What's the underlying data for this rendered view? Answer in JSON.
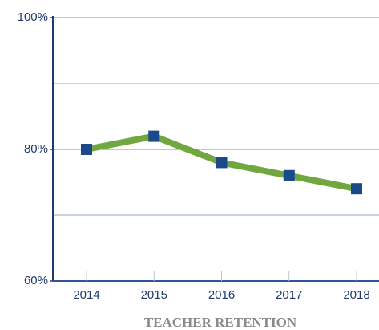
{
  "chart_data": {
    "type": "line",
    "title": "TEACHER RETENTION",
    "categories": [
      "2014",
      "2015",
      "2016",
      "2017",
      "2018"
    ],
    "series": [
      {
        "name": "Teacher retention",
        "color": "#70a83f",
        "marker_color": "#1a4a8a",
        "values": [
          80,
          82,
          78,
          76,
          74
        ]
      }
    ],
    "ylim": [
      60,
      100
    ],
    "yticks": [
      {
        "value": 60,
        "label": "60%"
      },
      {
        "value": 80,
        "label": "80%"
      },
      {
        "value": 100,
        "label": "100%"
      }
    ],
    "minor_yticks": [
      70,
      90
    ],
    "grid": true
  }
}
